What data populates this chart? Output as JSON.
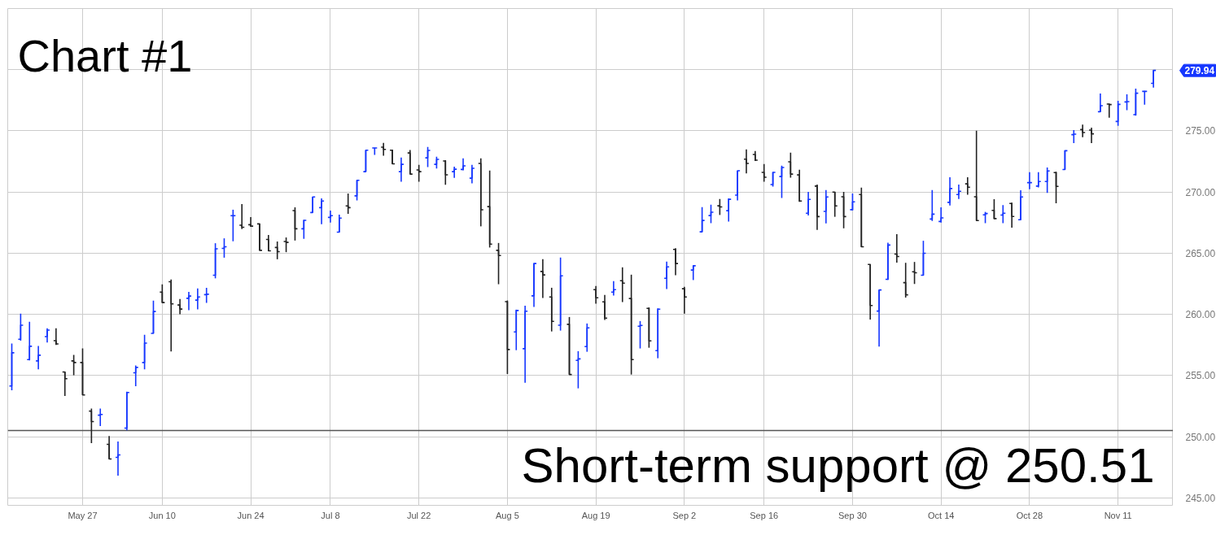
{
  "chart_data": {
    "type": "candlestick",
    "title": "Chart #1",
    "color": "#1536ff",
    "categories": [
      null,
      null,
      null,
      null,
      null,
      null,
      null,
      null,
      "May 27",
      null,
      null,
      null,
      null,
      null,
      null,
      null,
      null,
      "Jun 10",
      null,
      null,
      null,
      null,
      null,
      null,
      null,
      null,
      null,
      "Jun 24",
      null,
      null,
      null,
      null,
      null,
      null,
      null,
      null,
      "Jul 8",
      null,
      null,
      null,
      null,
      null,
      null,
      null,
      null,
      null,
      "Jul 22",
      null,
      null,
      null,
      null,
      null,
      null,
      null,
      null,
      null,
      "Aug 5",
      null,
      null,
      null,
      null,
      null,
      null,
      null,
      null,
      null,
      "Aug 19",
      null,
      null,
      null,
      null,
      null,
      null,
      null,
      null,
      null,
      "Sep 2",
      null,
      null,
      null,
      null,
      null,
      null,
      null,
      null,
      "Sep 16",
      null,
      null,
      null,
      null,
      null,
      null,
      null,
      null,
      null,
      "Sep 30",
      null,
      null,
      null,
      null,
      null,
      null,
      null,
      null,
      null,
      "Oct 14",
      null,
      null,
      null,
      null,
      null,
      null,
      null,
      null,
      null,
      "Oct 28",
      null,
      null,
      null,
      null,
      null,
      null,
      null,
      null,
      null,
      "Nov 11",
      null,
      null,
      null,
      null
    ],
    "ohlc": [
      [
        254.15,
        257.62,
        253.8,
        256.87
      ],
      [
        257.97,
        260.07,
        257.86,
        259.12
      ],
      [
        256.31,
        259.4,
        256.25,
        257.4
      ],
      [
        256.2,
        257.42,
        255.52,
        256.67
      ],
      [
        258.19,
        258.87,
        257.7,
        258.72
      ],
      [
        257.86,
        258.87,
        257.51,
        257.59
      ],
      [
        255.3,
        255.32,
        253.33,
        254.75
      ],
      [
        256.2,
        256.69,
        255.03,
        256.07
      ],
      [
        256.07,
        257.22,
        253.42,
        253.42
      ],
      [
        252.1,
        252.3,
        249.49,
        251.24
      ],
      [
        251.77,
        252.3,
        250.88,
        251.83
      ],
      [
        249.38,
        250.07,
        248.19,
        248.19
      ],
      [
        248.32,
        249.62,
        246.82,
        248.52
      ],
      [
        250.71,
        253.69,
        250.53,
        253.62
      ],
      [
        255.23,
        255.83,
        254.13,
        255.67
      ],
      [
        256.07,
        258.34,
        255.52,
        257.66
      ],
      [
        258.45,
        261.13,
        258.45,
        260.24
      ],
      [
        261.83,
        262.45,
        260.97,
        260.97
      ],
      [
        262.67,
        262.85,
        256.98,
        260.86
      ],
      [
        260.77,
        261.26,
        260.02,
        260.44
      ],
      [
        261.32,
        261.85,
        260.35,
        261.5
      ],
      [
        261.17,
        262.12,
        260.42,
        261.43
      ],
      [
        261.62,
        262.17,
        260.95,
        261.65
      ],
      [
        263.2,
        265.82,
        262.95,
        265.36
      ],
      [
        265.4,
        266.22,
        264.64,
        265.53
      ],
      [
        268.07,
        268.56,
        265.98,
        268.07
      ],
      [
        267.29,
        269.02,
        266.98,
        267.13
      ],
      [
        267.33,
        267.96,
        267.16,
        267.22
      ],
      [
        267.4,
        267.4,
        265.22,
        265.24
      ],
      [
        266.13,
        266.49,
        265.18,
        265.2
      ],
      [
        265.47,
        265.96,
        264.51,
        265.13
      ],
      [
        265.96,
        266.29,
        265.09,
        265.89
      ],
      [
        268.49,
        268.76,
        266.04,
        267.0
      ],
      [
        267.0,
        267.73,
        266.18,
        267.69
      ],
      [
        268.33,
        269.62,
        268.33,
        269.6
      ],
      [
        268.73,
        269.49,
        267.38,
        269.27
      ],
      [
        267.93,
        268.49,
        267.51,
        268.07
      ],
      [
        266.73,
        268.16,
        266.73,
        267.87
      ],
      [
        268.87,
        269.89,
        268.22,
        268.73
      ],
      [
        269.69,
        270.96,
        269.31,
        270.96
      ],
      [
        271.67,
        273.42,
        271.67,
        273.42
      ],
      [
        273.6,
        273.62,
        273.04,
        273.6
      ],
      [
        273.67,
        274.02,
        272.98,
        273.49
      ],
      [
        273.42,
        273.47,
        272.31,
        272.31
      ],
      [
        271.67,
        272.83,
        270.85,
        272.27
      ],
      [
        273.2,
        273.43,
        271.47,
        271.47
      ],
      [
        271.81,
        272.23,
        270.85,
        271.67
      ],
      [
        272.8,
        273.69,
        272.05,
        273.4
      ],
      [
        272.27,
        272.89,
        271.92,
        272.67
      ],
      [
        272.54,
        272.61,
        270.59,
        271.41
      ],
      [
        271.67,
        272.07,
        271.16,
        271.87
      ],
      [
        271.85,
        272.76,
        271.78,
        272.14
      ],
      [
        271.14,
        272.23,
        270.72,
        271.94
      ],
      [
        272.34,
        272.76,
        267.2,
        268.55
      ],
      [
        268.81,
        271.76,
        265.47,
        265.75
      ],
      [
        265.24,
        265.84,
        262.47,
        264.82
      ],
      [
        261.05,
        261.14,
        255.13,
        257.13
      ],
      [
        258.57,
        260.39,
        257.08,
        260.32
      ],
      [
        257.2,
        260.72,
        254.42,
        260.26
      ],
      [
        261.52,
        264.18,
        260.61,
        264.16
      ],
      [
        263.51,
        264.51,
        261.34,
        263.23
      ],
      [
        261.43,
        262.18,
        258.61,
        259.43
      ],
      [
        259.12,
        264.65,
        258.68,
        263.16
      ],
      [
        259.19,
        259.79,
        255.09,
        255.09
      ],
      [
        256.24,
        257.0,
        253.96,
        256.37
      ],
      [
        257.37,
        259.26,
        256.95,
        258.9
      ],
      [
        262.03,
        262.32,
        260.88,
        261.36
      ],
      [
        261.03,
        261.59,
        259.55,
        259.7
      ],
      [
        261.83,
        262.72,
        261.54,
        262.03
      ],
      [
        262.76,
        263.85,
        261.01,
        262.56
      ],
      [
        261.3,
        263.25,
        255.09,
        256.31
      ],
      [
        259.04,
        259.46,
        257.22,
        259.1
      ],
      [
        260.5,
        260.57,
        257.28,
        257.84
      ],
      [
        257.04,
        260.5,
        256.42,
        260.43
      ],
      [
        262.96,
        264.31,
        262.07,
        263.89
      ],
      [
        265.31,
        265.42,
        263.2,
        264.16
      ],
      [
        262.1,
        262.25,
        260.06,
        261.43
      ],
      [
        263.63,
        263.98,
        262.81,
        263.98
      ],
      [
        266.75,
        268.77,
        266.75,
        267.68
      ],
      [
        268.08,
        268.97,
        267.46,
        268.35
      ],
      [
        268.88,
        269.43,
        268.13,
        268.79
      ],
      [
        268.48,
        269.48,
        267.59,
        269.41
      ],
      [
        269.75,
        271.74,
        269.32,
        271.74
      ],
      [
        272.69,
        273.49,
        271.52,
        272.34
      ],
      [
        273.07,
        273.36,
        272.54,
        272.61
      ],
      [
        271.61,
        272.29,
        270.85,
        271.21
      ],
      [
        270.61,
        271.63,
        270.45,
        271.61
      ],
      [
        271.27,
        272.16,
        269.52,
        272.01
      ],
      [
        272.47,
        273.22,
        271.18,
        271.47
      ],
      [
        271.4,
        271.82,
        269.2,
        269.27
      ],
      [
        268.27,
        270.02,
        268.09,
        269.4
      ],
      [
        270.49,
        270.62,
        266.91,
        268.0
      ],
      [
        268.42,
        270.16,
        267.44,
        269.6
      ],
      [
        270.0,
        270.02,
        267.98,
        268.87
      ],
      [
        269.62,
        270.02,
        267.04,
        268.0
      ],
      [
        268.56,
        269.89,
        268.51,
        269.2
      ],
      [
        269.8,
        270.36,
        265.51,
        265.53
      ],
      [
        264.09,
        264.09,
        259.58,
        260.73
      ],
      [
        260.27,
        262.0,
        257.38,
        262.0
      ],
      [
        262.87,
        265.87,
        262.82,
        265.67
      ],
      [
        264.93,
        266.56,
        264.24,
        264.73
      ],
      [
        262.6,
        264.22,
        261.38,
        261.6
      ],
      [
        263.49,
        264.29,
        262.49,
        263.4
      ],
      [
        263.2,
        266.02,
        263.2,
        265.0
      ],
      [
        267.8,
        270.16,
        267.64,
        268.2
      ],
      [
        267.6,
        268.76,
        267.51,
        267.89
      ],
      [
        269.16,
        271.22,
        268.91,
        270.29
      ],
      [
        269.8,
        270.62,
        269.44,
        270.07
      ],
      [
        270.67,
        271.22,
        269.78,
        270.4
      ],
      [
        269.62,
        275.02,
        267.67,
        267.67
      ],
      [
        268.14,
        268.38,
        267.46,
        268.25
      ],
      [
        268.5,
        269.42,
        267.81,
        267.83
      ],
      [
        268.12,
        268.94,
        267.46,
        268.27
      ],
      [
        269.07,
        269.14,
        267.1,
        268.01
      ],
      [
        267.74,
        270.15,
        267.72,
        269.6
      ],
      [
        270.77,
        271.62,
        270.24,
        270.77
      ],
      [
        270.49,
        271.62,
        270.38,
        270.86
      ],
      [
        270.86,
        272.01,
        269.93,
        271.73
      ],
      [
        271.59,
        271.66,
        269.09,
        270.46
      ],
      [
        271.84,
        273.41,
        271.84,
        273.38
      ],
      [
        274.69,
        275.07,
        274.0,
        274.73
      ],
      [
        275.11,
        275.51,
        274.49,
        274.87
      ],
      [
        275.07,
        275.27,
        274.0,
        274.76
      ],
      [
        276.57,
        278.05,
        276.55,
        277.06
      ],
      [
        277.19,
        277.23,
        276.08,
        277.15
      ],
      [
        275.77,
        277.46,
        275.42,
        277.17
      ],
      [
        277.37,
        277.99,
        276.7,
        277.39
      ],
      [
        276.33,
        278.45,
        276.24,
        278.08
      ],
      [
        278.23,
        278.27,
        277.15,
        278.23
      ],
      [
        278.89,
        279.97,
        278.54,
        279.94
      ]
    ],
    "colors": [
      "#1536ff",
      "#1536ff",
      "#1536ff",
      "#1536ff",
      "#1536ff",
      "#222222",
      "#222222",
      "#222222",
      "#222222",
      "#222222",
      "#1536ff",
      "#222222",
      "#1536ff",
      "#1536ff",
      "#1536ff",
      "#1536ff",
      "#1536ff",
      "#222222",
      "#222222",
      "#222222",
      "#1536ff",
      "#1536ff",
      "#1536ff",
      "#1536ff",
      "#1536ff",
      "#1536ff",
      "#222222",
      "#222222",
      "#222222",
      "#222222",
      "#222222",
      "#222222",
      "#222222",
      "#1536ff",
      "#1536ff",
      "#1536ff",
      "#1536ff",
      "#1536ff",
      "#222222",
      "#1536ff",
      "#1536ff",
      "#1536ff",
      "#222222",
      "#222222",
      "#1536ff",
      "#222222",
      "#222222",
      "#1536ff",
      "#1536ff",
      "#222222",
      "#1536ff",
      "#1536ff",
      "#1536ff",
      "#222222",
      "#222222",
      "#222222",
      "#222222",
      "#1536ff",
      "#1536ff",
      "#1536ff",
      "#222222",
      "#222222",
      "#1536ff",
      "#222222",
      "#1536ff",
      "#1536ff",
      "#222222",
      "#222222",
      "#1536ff",
      "#222222",
      "#222222",
      "#1536ff",
      "#222222",
      "#1536ff",
      "#1536ff",
      "#222222",
      "#222222",
      "#1536ff",
      "#1536ff",
      "#1536ff",
      "#222222",
      "#1536ff",
      "#1536ff",
      "#222222",
      "#222222",
      "#222222",
      "#1536ff",
      "#1536ff",
      "#222222",
      "#222222",
      "#1536ff",
      "#222222",
      "#1536ff",
      "#222222",
      "#222222",
      "#1536ff",
      "#222222",
      "#222222",
      "#1536ff",
      "#1536ff",
      "#222222",
      "#222222",
      "#222222",
      "#1536ff",
      "#1536ff",
      "#1536ff",
      "#1536ff",
      "#1536ff",
      "#222222",
      "#222222",
      "#1536ff",
      "#222222",
      "#1536ff",
      "#222222",
      "#1536ff",
      "#1536ff",
      "#1536ff",
      "#1536ff",
      "#222222",
      "#1536ff",
      "#1536ff",
      "#222222",
      "#222222",
      "#1536ff",
      "#222222",
      "#1536ff",
      "#1536ff",
      "#1536ff",
      "#1536ff",
      "#1536ff"
    ],
    "ylim": [
      244.4,
      285
    ],
    "yticks": [
      {
        "value": 245,
        "label": "245.00"
      },
      {
        "value": 250,
        "label": "250.00"
      },
      {
        "value": 255,
        "label": "255.00"
      },
      {
        "value": 260,
        "label": "260.00"
      },
      {
        "value": 265,
        "label": "265.00"
      },
      {
        "value": 270,
        "label": "270.00"
      },
      {
        "value": 275,
        "label": "275.00"
      },
      {
        "value": 280,
        "label": null
      }
    ],
    "grid": true,
    "ref_lines": [
      {
        "axis": "y",
        "value": 250.51,
        "label": "Short-term support @ 250.51",
        "color": "#555555"
      }
    ],
    "annotations": [
      "279.94"
    ]
  }
}
